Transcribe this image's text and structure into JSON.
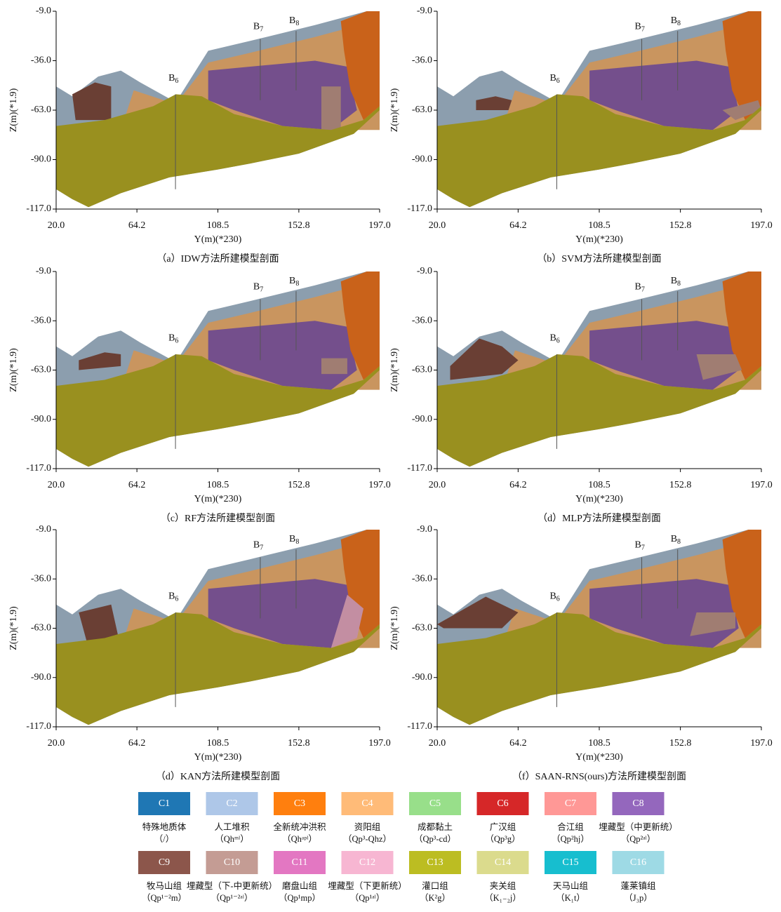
{
  "chart_data": [
    {
      "type": "section",
      "caption": "（a）IDW方法所建模型剖面",
      "xlabel": "Y(m)(*230)",
      "ylabel": "Z(m)(*1.9)",
      "xlim": [
        20,
        197
      ],
      "ylim": [
        -117,
        -9
      ],
      "xticks": [
        {
          "value": 20,
          "label": "20.0"
        },
        64.2,
        108.5,
        152.8,
        {
          "value": 197,
          "label": "197.0"
        }
      ],
      "yticks": [
        {
          "value": -9,
          "label": "-9.0"
        },
        {
          "value": -36,
          "label": "-36.0"
        },
        {
          "value": -63,
          "label": "-63.0"
        },
        {
          "value": -90,
          "label": "-90.0"
        },
        {
          "value": -117,
          "label": "-117.0"
        }
      ],
      "boreholes": [
        {
          "name": "B",
          "sub": "6",
          "x": 85.3
        },
        {
          "name": "B",
          "sub": "7",
          "x": 131.7
        },
        {
          "name": "B",
          "sub": "8",
          "x": 151.3
        }
      ]
    },
    {
      "type": "section",
      "caption": "（b）SVM方法所建模型剖面",
      "xlabel": "Y(m)(*230)",
      "ylabel": "Z(m)(*1.9)",
      "xlim": [
        20,
        197
      ],
      "ylim": [
        -117,
        -9
      ],
      "xticks": [
        {
          "value": 20,
          "label": "20.0"
        },
        64.2,
        108.5,
        152.8,
        {
          "value": 197,
          "label": "197.0"
        }
      ],
      "yticks": [
        {
          "value": -9,
          "label": "-9.0"
        },
        {
          "value": -36,
          "label": "-36.0"
        },
        {
          "value": -63,
          "label": "-63.0"
        },
        {
          "value": -90,
          "label": "-90.0"
        },
        {
          "value": -117,
          "label": "-117.0"
        }
      ],
      "boreholes": [
        {
          "name": "B",
          "sub": "6",
          "x": 85.3
        },
        {
          "name": "B",
          "sub": "7",
          "x": 131.7
        },
        {
          "name": "B",
          "sub": "8",
          "x": 151.3
        }
      ]
    },
    {
      "type": "section",
      "caption": "（c）RF方法所建模型剖面",
      "xlabel": "Y(m)(*230)",
      "ylabel": "Z(m)(*1.9)",
      "xlim": [
        20,
        197
      ],
      "ylim": [
        -117,
        -9
      ],
      "xticks": [
        {
          "value": 20,
          "label": "20.0"
        },
        64.2,
        108.5,
        152.8,
        {
          "value": 197,
          "label": "197.0"
        }
      ],
      "yticks": [
        {
          "value": -9,
          "label": "-9.0"
        },
        {
          "value": -36,
          "label": "-36.0"
        },
        {
          "value": -63,
          "label": "-63.0"
        },
        {
          "value": -90,
          "label": "-90.0"
        },
        {
          "value": -117,
          "label": "-117.0"
        }
      ],
      "boreholes": [
        {
          "name": "B",
          "sub": "6",
          "x": 85.3
        },
        {
          "name": "B",
          "sub": "7",
          "x": 131.7
        },
        {
          "name": "B",
          "sub": "8",
          "x": 151.3
        }
      ]
    },
    {
      "type": "section",
      "caption": "（d）MLP方法所建模型剖面",
      "xlabel": "Y(m)(*230)",
      "ylabel": "Z(m)(*1.9)",
      "xlim": [
        20,
        197
      ],
      "ylim": [
        -117,
        -9
      ],
      "xticks": [
        {
          "value": 20,
          "label": "20.0"
        },
        64.2,
        108.5,
        152.8,
        {
          "value": 197,
          "label": "197.0"
        }
      ],
      "yticks": [
        {
          "value": -9,
          "label": "-9.0"
        },
        {
          "value": -36,
          "label": "-36.0"
        },
        {
          "value": -63,
          "label": "-63.0"
        },
        {
          "value": -90,
          "label": "-90.0"
        },
        {
          "value": -117,
          "label": "-117.0"
        }
      ],
      "boreholes": [
        {
          "name": "B",
          "sub": "6",
          "x": 85.3
        },
        {
          "name": "B",
          "sub": "7",
          "x": 131.7
        },
        {
          "name": "B",
          "sub": "8",
          "x": 151.3
        }
      ]
    },
    {
      "type": "section",
      "caption": "（d）KAN方法所建模型剖面",
      "xlabel": "Y(m)(*230)",
      "ylabel": "Z(m)(*1.9)",
      "xlim": [
        20,
        197
      ],
      "ylim": [
        -117,
        -9
      ],
      "xticks": [
        {
          "value": 20,
          "label": "20.0"
        },
        64.2,
        108.5,
        152.8,
        {
          "value": 197,
          "label": "197.0"
        }
      ],
      "yticks": [
        {
          "value": -9,
          "label": "-9.0"
        },
        {
          "value": -36,
          "label": "-36.0"
        },
        {
          "value": -63,
          "label": "-63.0"
        },
        {
          "value": -90,
          "label": "-90.0"
        },
        {
          "value": -117,
          "label": "-117.0"
        }
      ],
      "boreholes": [
        {
          "name": "B",
          "sub": "6",
          "x": 85.3
        },
        {
          "name": "B",
          "sub": "7",
          "x": 131.7
        },
        {
          "name": "B",
          "sub": "8",
          "x": 151.3
        }
      ]
    },
    {
      "type": "section",
      "caption": "（f）SAAN-RNS(ours)方法所建模型剖面",
      "xlabel": "Y(m)(*230)",
      "ylabel": "Z(m)(*1.9)",
      "xlim": [
        20,
        197
      ],
      "ylim": [
        -117,
        -9
      ],
      "xticks": [
        {
          "value": 20,
          "label": "20.0"
        },
        64.2,
        108.5,
        152.8,
        {
          "value": 197,
          "label": "197.0"
        }
      ],
      "yticks": [
        {
          "value": -9,
          "label": "-9.0"
        },
        {
          "value": -36,
          "label": "-36.0"
        },
        {
          "value": -63,
          "label": "-63.0"
        },
        {
          "value": -90,
          "label": "-90.0"
        },
        {
          "value": -117,
          "label": "-117.0"
        }
      ],
      "boreholes": [
        {
          "name": "B",
          "sub": "6",
          "x": 85.3
        },
        {
          "name": "B",
          "sub": "7",
          "x": 131.7
        },
        {
          "name": "B",
          "sub": "8",
          "x": 151.3
        }
      ]
    }
  ],
  "legend": {
    "items": [
      {
        "code": "C1",
        "color": "#1f77b4",
        "name": "特殊地质体",
        "symbol": "（/）"
      },
      {
        "code": "C2",
        "color": "#aec7e8",
        "name": "人工堆积",
        "symbol": "（Qhᵐˡ）"
      },
      {
        "code": "C3",
        "color": "#ff7f0e",
        "name": "全新统冲洪积",
        "symbol": "（Qhᵃᵖˡ）"
      },
      {
        "code": "C4",
        "color": "#ffbb78",
        "name": "资阳组",
        "symbol": "（Qp³-Qhz）"
      },
      {
        "code": "C5",
        "color": "#98df8a",
        "name": "成都黏土",
        "symbol": "（Qp³-cd）"
      },
      {
        "code": "C6",
        "color": "#d62728",
        "name": "广汉组",
        "symbol": "（Qp³g）"
      },
      {
        "code": "C7",
        "color": "#ff9896",
        "name": "合江组",
        "symbol": "（Qp²hj）"
      },
      {
        "code": "C8",
        "color": "#9467bd",
        "name": "埋藏型（中更新统）",
        "symbol": "（Qp²ᵃˡ）"
      },
      {
        "code": "C9",
        "color": "#8c564b",
        "name": "牧马山组",
        "symbol": "（Qp¹⁻²m）"
      },
      {
        "code": "C10",
        "color": "#c49c94",
        "name": "埋藏型（下-中更新统）",
        "symbol": "（Qp¹⁻²ᵃˡ）"
      },
      {
        "code": "C11",
        "color": "#e377c2",
        "name": "磨盘山组",
        "symbol": "（Qp¹mp）"
      },
      {
        "code": "C12",
        "color": "#f7b6d2",
        "name": "埋藏型（下更新统）",
        "symbol": "（Qp¹ᵃˡ）"
      },
      {
        "code": "C13",
        "color": "#bcbd22",
        "name": "灌口组",
        "symbol": "（K²g）"
      },
      {
        "code": "C14",
        "color": "#dbdb8d",
        "name": "夹关组",
        "symbol": "（K₁₋₂j）"
      },
      {
        "code": "C15",
        "color": "#17becf",
        "name": "天马山组",
        "symbol": "（K₁t）"
      },
      {
        "code": "C16",
        "color": "#9edae5",
        "name": "蓬莱镇组",
        "symbol": "（J₃p）"
      }
    ]
  }
}
